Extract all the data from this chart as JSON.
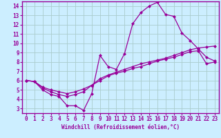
{
  "xlabel": "Windchill (Refroidissement éolien,°C)",
  "background_color": "#cceeff",
  "grid_color": "#aacccc",
  "line_color": "#990099",
  "marker": "D",
  "markersize": 2,
  "linewidth": 0.9,
  "xlim": [
    -0.5,
    23.5
  ],
  "ylim": [
    2.5,
    14.5
  ],
  "xticks": [
    0,
    1,
    2,
    3,
    4,
    5,
    6,
    7,
    8,
    9,
    10,
    11,
    12,
    13,
    14,
    15,
    16,
    17,
    18,
    19,
    20,
    21,
    22,
    23
  ],
  "yticks": [
    3,
    4,
    5,
    6,
    7,
    8,
    9,
    10,
    11,
    12,
    13,
    14
  ],
  "tick_fontsize": 5.5,
  "xlabel_fontsize": 5.5,
  "line1_x": [
    0,
    1,
    2,
    3,
    4,
    5,
    6,
    7,
    8,
    9,
    10,
    11,
    12,
    13,
    14,
    15,
    16,
    17,
    18,
    19,
    20,
    21,
    22,
    23
  ],
  "line1_y": [
    6.0,
    5.9,
    5.0,
    4.5,
    4.3,
    3.3,
    3.3,
    2.8,
    4.6,
    8.7,
    7.5,
    7.2,
    8.9,
    12.1,
    13.3,
    14.0,
    14.4,
    13.1,
    12.9,
    11.1,
    10.3,
    9.4,
    8.5,
    8.1
  ],
  "line2_x": [
    0,
    1,
    2,
    3,
    4,
    5,
    6,
    7,
    8,
    9,
    10,
    11,
    12,
    13,
    14,
    15,
    16,
    17,
    18,
    19,
    20,
    21,
    22,
    23
  ],
  "line2_y": [
    6.0,
    5.9,
    5.3,
    5.0,
    4.8,
    4.6,
    4.8,
    5.1,
    5.5,
    6.0,
    6.5,
    6.8,
    7.0,
    7.3,
    7.5,
    7.8,
    8.1,
    8.3,
    8.5,
    8.8,
    9.1,
    9.2,
    7.8,
    8.0
  ],
  "line3_x": [
    0,
    1,
    2,
    3,
    4,
    5,
    6,
    7,
    8,
    9,
    10,
    11,
    12,
    13,
    14,
    15,
    16,
    17,
    18,
    19,
    20,
    21,
    22,
    23
  ],
  "line3_y": [
    6.0,
    5.9,
    5.2,
    4.8,
    4.5,
    4.3,
    4.5,
    4.8,
    5.5,
    6.2,
    6.6,
    6.9,
    7.2,
    7.5,
    7.8,
    8.0,
    8.2,
    8.4,
    8.7,
    9.0,
    9.3,
    9.5,
    9.6,
    9.7
  ]
}
